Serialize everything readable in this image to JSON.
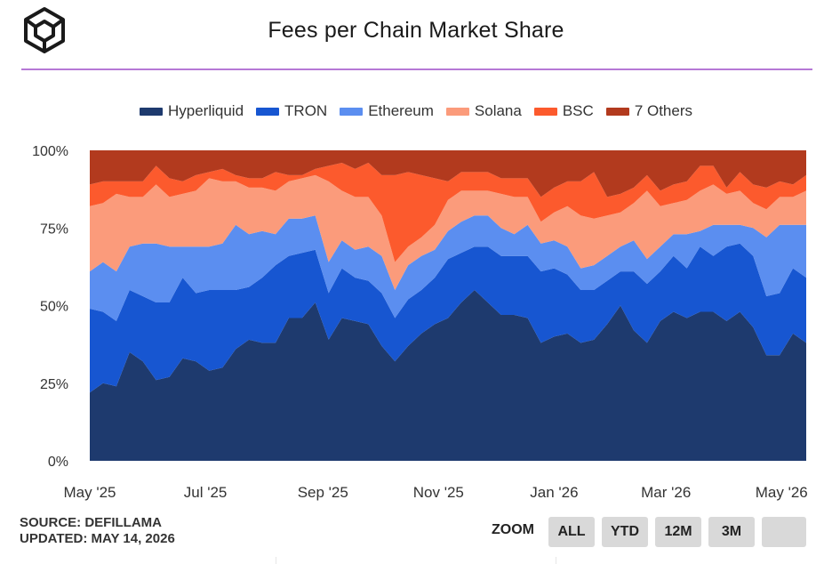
{
  "header": {
    "title": "Fees per Chain Market Share"
  },
  "footer": {
    "source": "SOURCE: DEFILLAMA",
    "updated": "UPDATED: MAY 14, 2026",
    "zoom_label": "ZOOM",
    "zoom_buttons": [
      "ALL",
      "YTD",
      "12M",
      "3M",
      ""
    ]
  },
  "colors": {
    "Hyperliquid": "#1e3a6e",
    "TRON": "#1756d1",
    "Ethereum": "#5b8ef0",
    "Solana": "#fb9b7b",
    "BSC": "#fc5a2d",
    "7 Others": "#b23a1e",
    "divider": "#b678d6"
  },
  "chart_data": {
    "type": "area",
    "stacked": true,
    "normalized": true,
    "x": [
      "2025-05-01",
      "2025-05-08",
      "2025-05-15",
      "2025-05-22",
      "2025-05-29",
      "2025-06-05",
      "2025-06-12",
      "2025-06-19",
      "2025-06-26",
      "2025-07-03",
      "2025-07-10",
      "2025-07-17",
      "2025-07-24",
      "2025-07-31",
      "2025-08-07",
      "2025-08-14",
      "2025-08-21",
      "2025-08-28",
      "2025-09-04",
      "2025-09-11",
      "2025-09-18",
      "2025-09-25",
      "2025-10-02",
      "2025-10-09",
      "2025-10-16",
      "2025-10-23",
      "2025-10-30",
      "2025-11-06",
      "2025-11-13",
      "2025-11-20",
      "2025-11-27",
      "2025-12-04",
      "2025-12-11",
      "2025-12-18",
      "2025-12-25",
      "2026-01-01",
      "2026-01-08",
      "2026-01-15",
      "2026-01-22",
      "2026-01-29",
      "2026-02-05",
      "2026-02-12",
      "2026-02-19",
      "2026-02-26",
      "2026-03-05",
      "2026-03-12",
      "2026-03-19",
      "2026-03-26",
      "2026-04-02",
      "2026-04-09",
      "2026-04-16",
      "2026-04-23",
      "2026-04-30",
      "2026-05-07",
      "2026-05-14"
    ],
    "series": [
      {
        "name": "Hyperliquid",
        "values": [
          22,
          25,
          24,
          35,
          32,
          26,
          27,
          33,
          32,
          29,
          30,
          36,
          39,
          38,
          38,
          46,
          46,
          51,
          39,
          46,
          45,
          44,
          37,
          32,
          37,
          41,
          44,
          46,
          51,
          55,
          51,
          47,
          47,
          46,
          38,
          40,
          41,
          38,
          39,
          44,
          50,
          42,
          38,
          45,
          48,
          46,
          48,
          48,
          45,
          48,
          43,
          34,
          34,
          41,
          38
        ]
      },
      {
        "name": "TRON",
        "values": [
          27,
          23,
          21,
          20,
          21,
          25,
          24,
          26,
          22,
          26,
          25,
          19,
          17,
          21,
          25,
          20,
          21,
          17,
          15,
          16,
          14,
          14,
          17,
          14,
          15,
          14,
          15,
          19,
          16,
          14,
          18,
          19,
          19,
          20,
          23,
          22,
          19,
          17,
          16,
          14,
          11,
          19,
          19,
          16,
          18,
          16,
          21,
          18,
          24,
          22,
          23,
          19,
          20,
          21,
          21
        ]
      },
      {
        "name": "Ethereum",
        "values": [
          12,
          16,
          16,
          14,
          17,
          19,
          18,
          10,
          15,
          14,
          15,
          21,
          17,
          15,
          10,
          12,
          11,
          11,
          10,
          9,
          9,
          11,
          12,
          9,
          11,
          11,
          9,
          9,
          10,
          10,
          10,
          9,
          7,
          10,
          9,
          9,
          9,
          7,
          8,
          8,
          8,
          10,
          8,
          8,
          7,
          11,
          5,
          10,
          7,
          6,
          9,
          19,
          22,
          14,
          17
        ]
      },
      {
        "name": "Solana",
        "values": [
          21,
          19,
          25,
          16,
          15,
          19,
          16,
          17,
          18,
          22,
          20,
          14,
          15,
          14,
          14,
          12,
          13,
          13,
          26,
          16,
          17,
          16,
          13,
          9,
          6,
          6,
          8,
          10,
          10,
          8,
          8,
          11,
          12,
          9,
          7,
          9,
          13,
          17,
          15,
          13,
          11,
          12,
          22,
          13,
          10,
          11,
          13,
          13,
          10,
          11,
          8,
          9,
          9,
          9,
          11
        ]
      },
      {
        "name": "BSC",
        "values": [
          7,
          7,
          4,
          5,
          5,
          6,
          6,
          4,
          5,
          2,
          4,
          2,
          3,
          3,
          6,
          2,
          1,
          2,
          5,
          9,
          9,
          11,
          13,
          28,
          24,
          20,
          15,
          6,
          6,
          6,
          6,
          5,
          6,
          6,
          8,
          8,
          8,
          11,
          15,
          6,
          6,
          5,
          5,
          5,
          6,
          6,
          8,
          6,
          2,
          6,
          6,
          7,
          5,
          4,
          5
        ]
      },
      {
        "name": "7 Others",
        "values": [
          11,
          10,
          10,
          10,
          10,
          5,
          9,
          10,
          8,
          7,
          6,
          8,
          9,
          9,
          7,
          8,
          8,
          6,
          5,
          4,
          6,
          4,
          8,
          8,
          7,
          8,
          9,
          10,
          7,
          7,
          7,
          9,
          9,
          9,
          15,
          12,
          10,
          10,
          7,
          15,
          14,
          12,
          8,
          13,
          11,
          10,
          5,
          5,
          12,
          7,
          11,
          12,
          10,
          11,
          8
        ]
      }
    ],
    "ylim": [
      0,
      100
    ],
    "y_ticks": [
      "0%",
      "25%",
      "50%",
      "75%",
      "100%"
    ],
    "y_tick_values": [
      0,
      25,
      50,
      75,
      100
    ],
    "x_ticks": [
      "May '25",
      "Jul '25",
      "Sep '25",
      "Nov '25",
      "Jan '26",
      "Mar '26",
      "May '26"
    ],
    "x_tick_dates": [
      "2025-05-01",
      "2025-07-01",
      "2025-09-01",
      "2025-11-01",
      "2026-01-01",
      "2026-03-01",
      "2026-05-01"
    ],
    "legend": "top-center",
    "grid": false
  }
}
